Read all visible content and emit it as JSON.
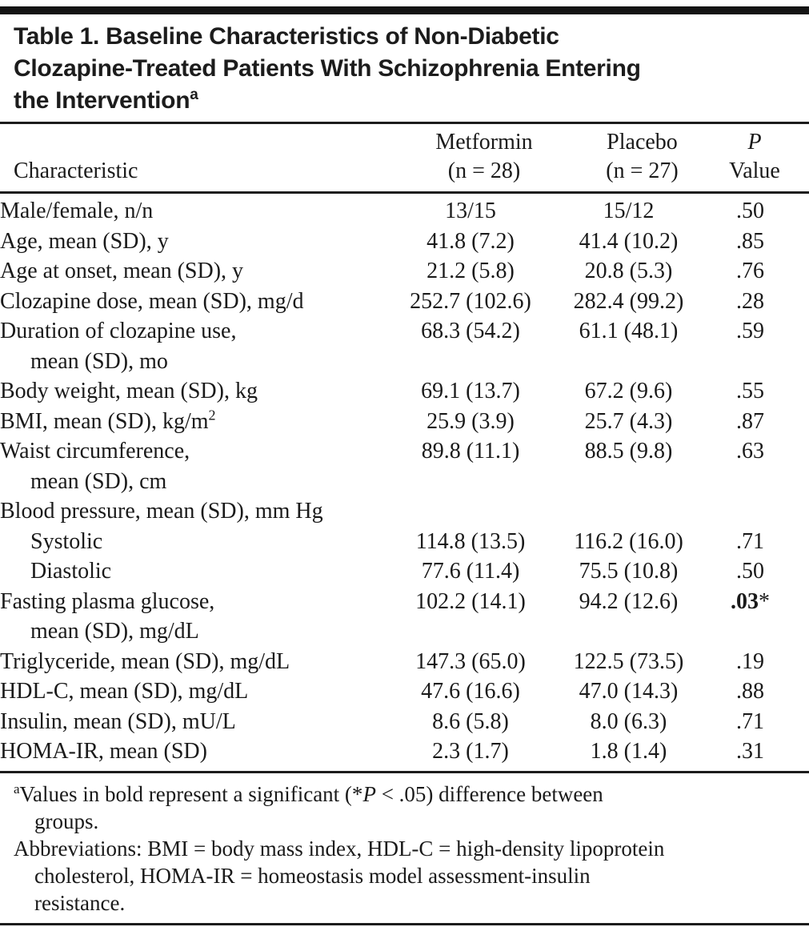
{
  "doc": {
    "title": {
      "line1": "Table 1. Baseline Characteristics of Non-Diabetic",
      "line2": "Clozapine-Treated Patients With Schizophrenia Entering",
      "line3": "the Intervention",
      "superscript": "a"
    },
    "header": {
      "characteristic": "Characteristic",
      "col1_line1": "Metformin",
      "col1_line2": "(n = 28)",
      "col2_line1": "Placebo",
      "col2_line2": "(n = 27)",
      "p_line1": "P",
      "p_line2": "Value"
    },
    "rows": [
      {
        "label": "Male/female, n/n",
        "metformin": "13/15",
        "placebo": "15/12",
        "p": ".50"
      },
      {
        "label": "Age, mean (SD), y",
        "metformin": "41.8 (7.2)",
        "placebo": "41.4 (10.2)",
        "p": ".85"
      },
      {
        "label": "Age at onset, mean (SD), y",
        "metformin": "21.2 (5.8)",
        "placebo": "20.8 (5.3)",
        "p": ".76"
      },
      {
        "label": "Clozapine dose, mean (SD), mg/d",
        "metformin": "252.7 (102.6)",
        "placebo": "282.4 (99.2)",
        "p": ".28"
      },
      {
        "label": "Duration of clozapine use,",
        "label2": "mean (SD), mo",
        "metformin": "68.3 (54.2)",
        "placebo": "61.1 (48.1)",
        "p": ".59"
      },
      {
        "label": "Body weight, mean (SD), kg",
        "metformin": "69.1 (13.7)",
        "placebo": "67.2 (9.6)",
        "p": ".55"
      },
      {
        "label": "BMI, mean (SD), kg/m",
        "label_sup": "2",
        "metformin": "25.9 (3.9)",
        "placebo": "25.7 (4.3)",
        "p": ".87"
      },
      {
        "label": "Waist circumference,",
        "label2": "mean (SD), cm",
        "metformin": "89.8 (11.1)",
        "placebo": "88.5 (9.8)",
        "p": ".63"
      },
      {
        "label": "Blood pressure, mean (SD), mm Hg",
        "metformin": "",
        "placebo": "",
        "p": ""
      },
      {
        "label": "Systolic",
        "metformin": "114.8 (13.5)",
        "placebo": "116.2 (16.0)",
        "p": ".71"
      },
      {
        "label": "Diastolic",
        "metformin": "77.6 (11.4)",
        "placebo": "75.5 (10.8)",
        "p": ".50"
      },
      {
        "label": "Fasting plasma glucose,",
        "label2": "mean (SD), mg/dL",
        "metformin": "102.2 (14.1)",
        "placebo": "94.2 (12.6)",
        "p": ".03",
        "p_star": "*"
      },
      {
        "label": "Triglyceride, mean (SD), mg/dL",
        "metformin": "147.3 (65.0)",
        "placebo": "122.5 (73.5)",
        "p": ".19"
      },
      {
        "label": "HDL-C, mean (SD), mg/dL",
        "metformin": "47.6 (16.6)",
        "placebo": "47.0 (14.3)",
        "p": ".88"
      },
      {
        "label": "Insulin, mean (SD), mU/L",
        "metformin": "8.6 (5.8)",
        "placebo": "8.0 (6.3)",
        "p": ".71"
      },
      {
        "label": "HOMA-IR, mean (SD)",
        "metformin": "2.3 (1.7)",
        "placebo": "1.8 (1.4)",
        "p": ".31"
      }
    ],
    "footnotes": {
      "a": {
        "sup": "a",
        "part1": "Values in bold represent a significant (*",
        "italic": "P",
        "part2": " < .05) difference between",
        "line2": "groups."
      },
      "abbrev": {
        "line1": "Abbreviations: BMI = body mass index, HDL-C = high-density lipoprotein",
        "line2": "cholesterol, HOMA-IR = homeostasis model assessment-insulin",
        "line3": "resistance."
      }
    }
  }
}
